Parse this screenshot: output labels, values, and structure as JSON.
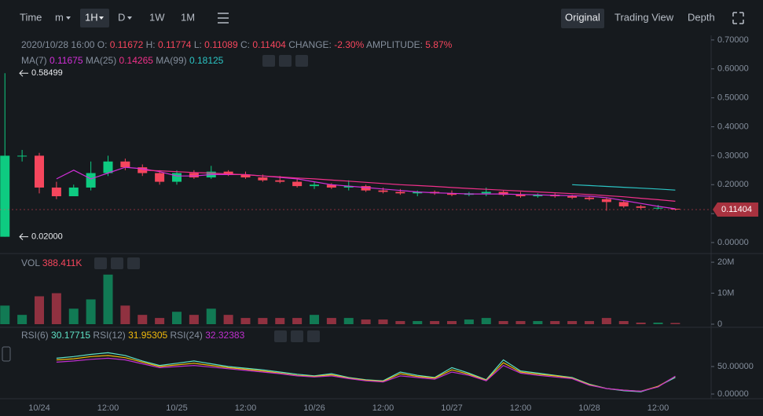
{
  "toolbar": {
    "time": "Time",
    "minute": "m",
    "hour": "1H",
    "day": "D",
    "week": "1W",
    "month": "1M",
    "original": "Original",
    "trading_view": "Trading View",
    "depth": "Depth"
  },
  "info": {
    "time": "2020/10/28 16:00",
    "o_label": "O:",
    "h_label": "H:",
    "l_label": "L:",
    "c_label": "C:",
    "change_label": "CHANGE:",
    "change": "-2.30%",
    "amplitude_label": "AMPLITUDE:",
    "amplitude": "5.87%"
  },
  "chart_data": [
    {
      "type": "candlestick",
      "up_color": "#0ecb81",
      "down_color": "#f6465d",
      "open": [
        0.02,
        0.3,
        0.3,
        0.19,
        0.16,
        0.19,
        0.24,
        0.28,
        0.26,
        0.24,
        0.21,
        0.24,
        0.225,
        0.245,
        0.235,
        0.225,
        0.215,
        0.21,
        0.195,
        0.2,
        0.19,
        0.195,
        0.18,
        0.175,
        0.17,
        0.175,
        0.17,
        0.165,
        0.17,
        0.175,
        0.165,
        0.16,
        0.165,
        0.16,
        0.155,
        0.15,
        0.14,
        0.125,
        0.12,
        0.11672
      ],
      "high": [
        0.58499,
        0.32,
        0.31,
        0.21,
        0.2,
        0.28,
        0.3,
        0.29,
        0.27,
        0.25,
        0.25,
        0.25,
        0.265,
        0.25,
        0.245,
        0.235,
        0.23,
        0.22,
        0.21,
        0.205,
        0.215,
        0.2,
        0.19,
        0.185,
        0.18,
        0.18,
        0.18,
        0.175,
        0.19,
        0.18,
        0.175,
        0.17,
        0.17,
        0.165,
        0.16,
        0.155,
        0.145,
        0.13,
        0.13,
        0.11774
      ],
      "low": [
        0.02,
        0.28,
        0.17,
        0.15,
        0.16,
        0.18,
        0.23,
        0.25,
        0.23,
        0.2,
        0.2,
        0.22,
        0.22,
        0.23,
        0.22,
        0.21,
        0.205,
        0.19,
        0.185,
        0.185,
        0.18,
        0.175,
        0.17,
        0.165,
        0.16,
        0.165,
        0.16,
        0.16,
        0.16,
        0.16,
        0.155,
        0.155,
        0.155,
        0.15,
        0.145,
        0.11,
        0.12,
        0.115,
        0.115,
        0.11089
      ],
      "close": [
        0.3,
        0.3,
        0.19,
        0.16,
        0.19,
        0.24,
        0.28,
        0.26,
        0.24,
        0.21,
        0.24,
        0.225,
        0.245,
        0.235,
        0.225,
        0.215,
        0.21,
        0.195,
        0.2,
        0.19,
        0.195,
        0.18,
        0.175,
        0.17,
        0.175,
        0.17,
        0.165,
        0.17,
        0.175,
        0.165,
        0.16,
        0.165,
        0.16,
        0.155,
        0.15,
        0.14,
        0.125,
        0.12,
        0.12,
        0.11404
      ],
      "series": [
        {
          "name": "MA(7)",
          "color": "#d12fd8",
          "values": [
            null,
            null,
            null,
            0.22,
            0.25,
            0.22,
            0.24,
            0.26,
            0.255,
            0.245,
            0.23,
            0.23,
            0.235,
            0.235,
            0.235,
            0.23,
            0.225,
            0.22,
            0.21,
            0.2,
            0.195,
            0.19,
            0.185,
            0.18,
            0.175,
            0.172,
            0.17,
            0.168,
            0.168,
            0.168,
            0.166,
            0.165,
            0.163,
            0.162,
            0.16,
            0.155,
            0.145,
            0.135,
            0.125,
            0.11675
          ]
        },
        {
          "name": "MA(25)",
          "color": "#f0308a",
          "values": [
            null,
            null,
            null,
            null,
            null,
            null,
            null,
            null,
            0.25,
            0.248,
            0.245,
            0.242,
            0.24,
            0.237,
            0.234,
            0.23,
            0.227,
            0.223,
            0.22,
            0.216,
            0.212,
            0.208,
            0.204,
            0.2,
            0.197,
            0.194,
            0.19,
            0.187,
            0.184,
            0.181,
            0.178,
            0.175,
            0.172,
            0.169,
            0.166,
            0.162,
            0.158,
            0.153,
            0.148,
            0.14265
          ]
        },
        {
          "name": "MA(99)",
          "color": "#2bc4c4",
          "values": [
            null,
            null,
            null,
            null,
            null,
            null,
            null,
            null,
            null,
            null,
            null,
            null,
            null,
            null,
            null,
            null,
            null,
            null,
            null,
            null,
            null,
            null,
            null,
            null,
            null,
            null,
            null,
            null,
            null,
            null,
            null,
            null,
            null,
            0.2,
            0.197,
            0.194,
            0.191,
            0.188,
            0.185,
            0.18125
          ]
        }
      ],
      "annotations": [
        {
          "value": 0.58499,
          "label": "0.58499"
        },
        {
          "value": 0.02,
          "label": "0.02000"
        }
      ],
      "ylim": [
        0,
        0.716
      ],
      "yticks": [
        {
          "value": 0,
          "label": "0.00000"
        },
        {
          "value": 0.1,
          "label": "0.10000"
        },
        {
          "value": 0.2,
          "label": "0.20000"
        },
        {
          "value": 0.3,
          "label": "0.30000"
        },
        {
          "value": 0.4,
          "label": "0.40000"
        },
        {
          "value": 0.5,
          "label": "0.50000"
        },
        {
          "value": 0.6,
          "label": "0.60000"
        },
        {
          "value": 0.7,
          "label": "0.70000"
        }
      ]
    },
    {
      "type": "bar",
      "up_color": "#0ecb81",
      "down_color": "#f6465d",
      "series": [
        {
          "name": "VOL",
          "values": [
            6000000,
            3000000,
            9000000,
            10000000,
            5000000,
            8000000,
            16000000,
            6000000,
            3000000,
            2000000,
            4000000,
            3000000,
            5000000,
            3000000,
            2000000,
            2000000,
            2000000,
            2000000,
            3000000,
            2000000,
            2000000,
            1500000,
            1500000,
            1000000,
            1000000,
            1000000,
            1000000,
            1500000,
            2000000,
            1000000,
            1000000,
            1000000,
            1000000,
            1000000,
            1000000,
            2000000,
            1000000,
            500000,
            500000,
            388411
          ],
          "value_labels": [
            null,
            null,
            null,
            null,
            null,
            null,
            null,
            null,
            null,
            null,
            null,
            null,
            null,
            null,
            null,
            null,
            null,
            null,
            null,
            null,
            null,
            null,
            null,
            null,
            null,
            null,
            null,
            null,
            null,
            null,
            null,
            null,
            null,
            null,
            null,
            null,
            null,
            null,
            null,
            "388.411K"
          ]
        }
      ],
      "ylim": [
        0,
        22300000
      ],
      "yticks": [
        0,
        {
          "value": 10000000,
          "label": "10M"
        },
        {
          "value": 20000000,
          "label": "20M"
        }
      ]
    },
    {
      "type": "line",
      "categories": [
        null,
        null,
        "10/24",
        null,
        null,
        null,
        "12:00",
        null,
        null,
        null,
        "10/25",
        null,
        null,
        null,
        "12:00",
        null,
        null,
        null,
        "10/26",
        null,
        null,
        null,
        "12:00",
        null,
        null,
        null,
        "10/27",
        null,
        null,
        null,
        "12:00",
        null,
        null,
        null,
        "10/28",
        null,
        null,
        null,
        "12:00",
        null
      ],
      "series": [
        {
          "name": "RSI(6)",
          "color": "#5fe3c7",
          "values": [
            null,
            null,
            null,
            65,
            68,
            72,
            75,
            70,
            60,
            52,
            56,
            60,
            55,
            50,
            47,
            44,
            40,
            36,
            33,
            37,
            30,
            26,
            24,
            40,
            34,
            30,
            48,
            38,
            26,
            62,
            42,
            38,
            34,
            30,
            18,
            10,
            6,
            4,
            14,
            30.17715
          ]
        },
        {
          "name": "RSI(12)",
          "color": "#f0b90b",
          "values": [
            null,
            null,
            null,
            62,
            64,
            68,
            70,
            66,
            58,
            50,
            53,
            56,
            52,
            48,
            45,
            42,
            38,
            34,
            32,
            35,
            29,
            25,
            23,
            37,
            32,
            29,
            44,
            36,
            25,
            57,
            40,
            36,
            33,
            29,
            17,
            10,
            7,
            5,
            14,
            31.95305
          ]
        },
        {
          "name": "RSI(24)",
          "color": "#c030d0",
          "values": [
            null,
            null,
            null,
            58,
            60,
            63,
            65,
            62,
            55,
            48,
            50,
            52,
            49,
            46,
            43,
            40,
            37,
            33,
            31,
            33,
            28,
            24,
            22,
            33,
            30,
            27,
            40,
            34,
            24,
            52,
            38,
            34,
            31,
            28,
            16,
            10,
            7,
            5,
            13,
            32.32383
          ]
        }
      ],
      "ylim": [
        0,
        117
      ],
      "yticks": [
        {
          "value": 0,
          "label": "0.00000"
        },
        {
          "value": 50,
          "label": "50.00000"
        }
      ]
    }
  ]
}
